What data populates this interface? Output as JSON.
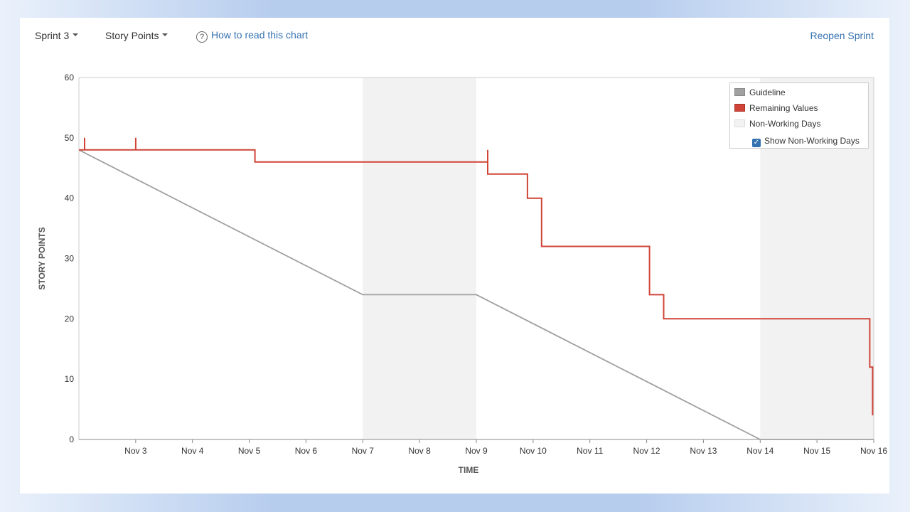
{
  "toolbar": {
    "sprint_label": "Sprint 3",
    "estimate_label": "Story Points",
    "help_link": "How to read this chart",
    "help_icon": "question-circle-icon",
    "reopen_label": "Reopen Sprint"
  },
  "legend": {
    "guideline": "Guideline",
    "remaining": "Remaining Values",
    "non_working": "Non-Working Days",
    "show_non_working": "Show Non-Working Days",
    "show_non_working_checked": true
  },
  "colors": {
    "guideline": "#a0a0a0",
    "remaining": "#d04437",
    "non_working": "#f2f2f2",
    "checkbox": "#3572b0",
    "link": "#3572b0"
  },
  "chart_data": {
    "type": "line",
    "title": "",
    "xlabel": "TIME",
    "ylabel": "STORY POINTS",
    "ylim": [
      0,
      60
    ],
    "y_ticks": [
      0,
      10,
      20,
      30,
      40,
      50,
      60
    ],
    "xlim": [
      "Nov 2",
      "Nov 16"
    ],
    "x_ticks": [
      "Nov 3",
      "Nov 4",
      "Nov 5",
      "Nov 6",
      "Nov 7",
      "Nov 8",
      "Nov 9",
      "Nov 10",
      "Nov 11",
      "Nov 12",
      "Nov 13",
      "Nov 14",
      "Nov 15",
      "Nov 16"
    ],
    "grid": false,
    "legend_position": "top-right",
    "non_working_days": [
      [
        "Nov 7",
        "Nov 9"
      ],
      [
        "Nov 14",
        "Nov 16"
      ]
    ],
    "series": [
      {
        "name": "Guideline",
        "kind": "line",
        "points": [
          [
            "Nov 2",
            48
          ],
          [
            "Nov 7",
            24
          ],
          [
            "Nov 9",
            24
          ],
          [
            "Nov 14",
            0
          ],
          [
            "Nov 16",
            0
          ]
        ]
      },
      {
        "name": "Remaining Values",
        "kind": "step",
        "points": [
          [
            "Nov 2",
            48
          ],
          [
            "Nov 2.1",
            48
          ],
          [
            "Nov 2.1",
            50
          ],
          [
            "Nov 2.1",
            48
          ],
          [
            "Nov 3",
            48
          ],
          [
            "Nov 3",
            50
          ],
          [
            "Nov 3",
            48
          ],
          [
            "Nov 5.1",
            48
          ],
          [
            "Nov 5.1",
            46
          ],
          [
            "Nov 9.2",
            46
          ],
          [
            "Nov 9.2",
            48
          ],
          [
            "Nov 9.2",
            44
          ],
          [
            "Nov 9.9",
            44
          ],
          [
            "Nov 9.9",
            40
          ],
          [
            "Nov 10.15",
            40
          ],
          [
            "Nov 10.15",
            32
          ],
          [
            "Nov 12.05",
            32
          ],
          [
            "Nov 12.05",
            24
          ],
          [
            "Nov 12.3",
            24
          ],
          [
            "Nov 12.3",
            20
          ],
          [
            "Nov 15.93",
            20
          ],
          [
            "Nov 15.93",
            12
          ],
          [
            "Nov 15.98",
            12
          ],
          [
            "Nov 15.98",
            4
          ]
        ]
      }
    ]
  }
}
